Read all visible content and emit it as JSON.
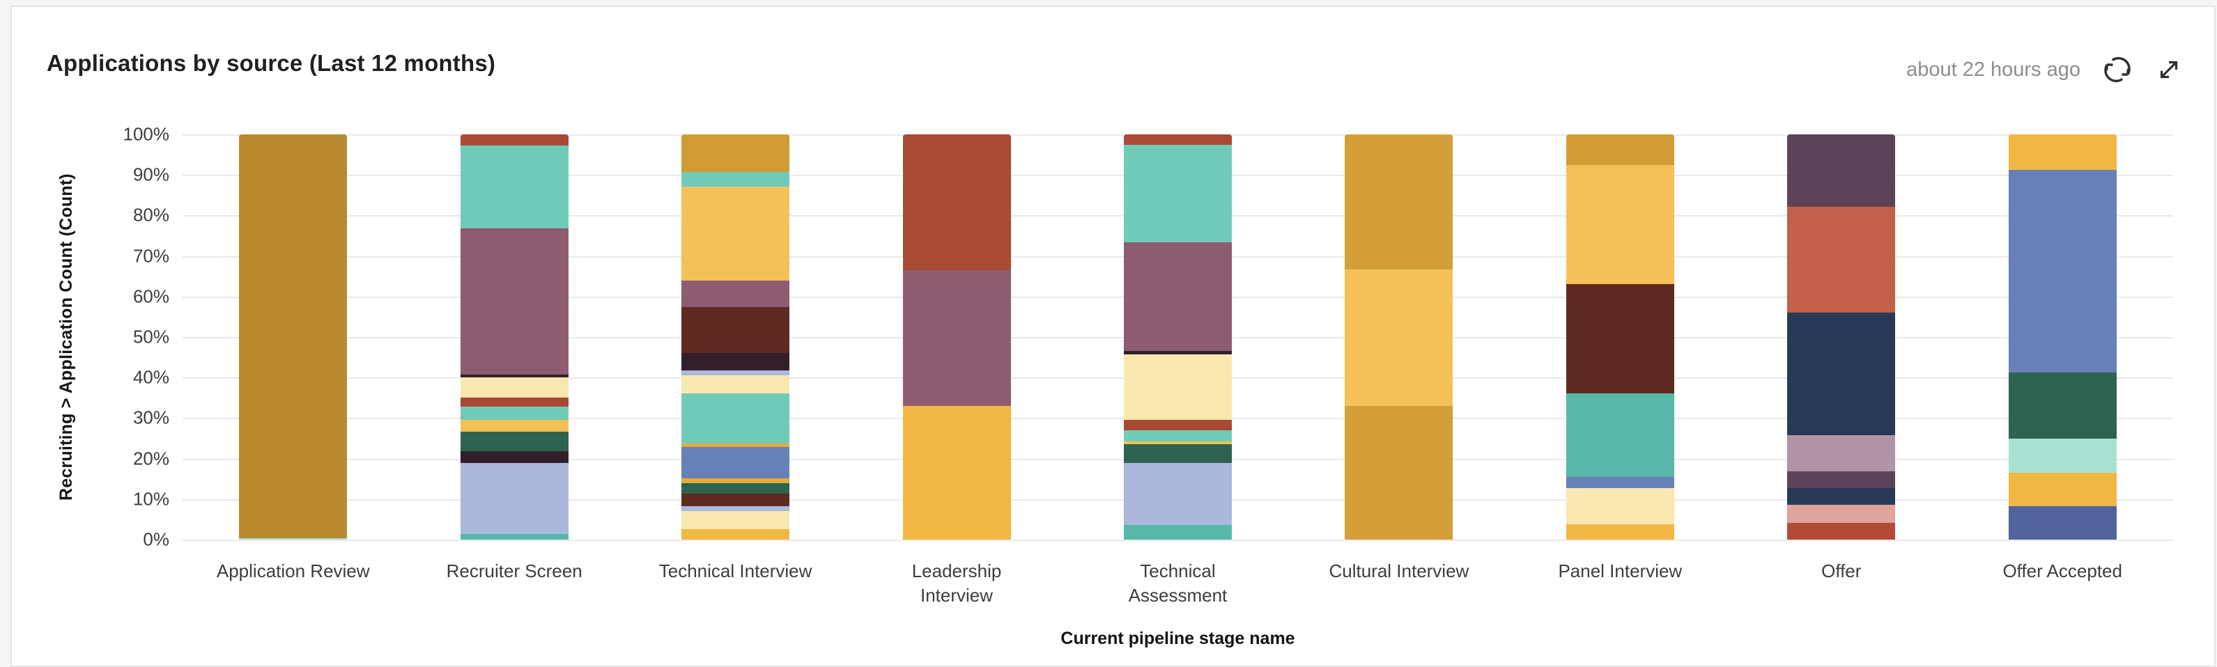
{
  "header": {
    "title": "Applications by source (Last 12 months)",
    "last_updated": "about 22 hours ago"
  },
  "icons": {
    "refresh": "circular-sync-arrows",
    "expand": "diagonal-expand-arrows"
  },
  "chart_data": {
    "type": "bar",
    "variant": "stacked-percentage",
    "title": "Applications by source (Last 12 months)",
    "xlabel": "Current pipeline stage name",
    "ylabel": "Recruiting > Application Count (Count)",
    "ylim": [
      0,
      100
    ],
    "grid": true,
    "legend_position": "none",
    "yticks": [
      "100%",
      "90%",
      "80%",
      "70%",
      "60%",
      "50%",
      "40%",
      "30%",
      "20%",
      "10%",
      "0%"
    ],
    "categories": [
      "Application Review",
      "Recruiter Screen",
      "Technical Interview",
      "Leadership Interview",
      "Technical Assessment",
      "Cultural Interview",
      "Panel Interview",
      "Offer",
      "Offer Accepted"
    ],
    "bars": [
      {
        "category": "Application Review",
        "label": "Application Review",
        "segments": [
          {
            "color": "#b9892e",
            "value": 99.6
          },
          {
            "color": "#a9e2d2",
            "value": 0.4
          }
        ]
      },
      {
        "category": "Recruiter Screen",
        "label": "Recruiter Screen",
        "segments": [
          {
            "color": "#a94a35",
            "value": 2.7
          },
          {
            "color": "#6fcbb8",
            "value": 20.5
          },
          {
            "color": "#8d5c71",
            "value": 36.0
          },
          {
            "color": "#31202c",
            "value": 0.8
          },
          {
            "color": "#f8e8b0",
            "value": 5.0
          },
          {
            "color": "#a94a35",
            "value": 2.2
          },
          {
            "color": "#6fcbb8",
            "value": 3.3
          },
          {
            "color": "#f2c054",
            "value": 2.8
          },
          {
            "color": "#2e6351",
            "value": 4.8
          },
          {
            "color": "#31202c",
            "value": 3.0
          },
          {
            "color": "#aab8dc",
            "value": 17.5
          },
          {
            "color": "#57b7a8",
            "value": 1.4
          }
        ]
      },
      {
        "category": "Technical Interview",
        "label": "Technical Interview",
        "segments": [
          {
            "color": "#d09b35",
            "value": 9.3
          },
          {
            "color": "#6fcbb8",
            "value": 3.6
          },
          {
            "color": "#f4c159",
            "value": 23.1
          },
          {
            "color": "#8d5c71",
            "value": 6.6
          },
          {
            "color": "#5e2a20",
            "value": 11.4
          },
          {
            "color": "#31202c",
            "value": 4.3
          },
          {
            "color": "#aab8dc",
            "value": 1.2
          },
          {
            "color": "#f8e8b0",
            "value": 4.4
          },
          {
            "color": "#6fcbb8",
            "value": 12.4
          },
          {
            "color": "#e8a93b",
            "value": 0.9
          },
          {
            "color": "#6780b8",
            "value": 7.7
          },
          {
            "color": "#e8a93b",
            "value": 1.1
          },
          {
            "color": "#2e6351",
            "value": 2.6
          },
          {
            "color": "#5e2a20",
            "value": 3.2
          },
          {
            "color": "#aab8dc",
            "value": 1.2
          },
          {
            "color": "#f8e8b0",
            "value": 4.5
          },
          {
            "color": "#f0b843",
            "value": 2.5
          }
        ]
      },
      {
        "category": "Leadership Interview",
        "label": "Leadership\nInterview",
        "segments": [
          {
            "color": "#a94a35",
            "value": 33.5
          },
          {
            "color": "#8d5c71",
            "value": 33.5
          },
          {
            "color": "#f0b843",
            "value": 33.0
          }
        ]
      },
      {
        "category": "Technical Assessment",
        "label": "Technical\nAssessment",
        "segments": [
          {
            "color": "#a94a35",
            "value": 2.6
          },
          {
            "color": "#6fcbb8",
            "value": 24.0
          },
          {
            "color": "#8d5c71",
            "value": 26.8
          },
          {
            "color": "#31202c",
            "value": 0.9
          },
          {
            "color": "#f8e8b0",
            "value": 16.2
          },
          {
            "color": "#a94a35",
            "value": 2.5
          },
          {
            "color": "#6fcbb8",
            "value": 2.7
          },
          {
            "color": "#f2c054",
            "value": 0.8
          },
          {
            "color": "#2e6351",
            "value": 4.6
          },
          {
            "color": "#aab8dc",
            "value": 15.3
          },
          {
            "color": "#57b7a8",
            "value": 3.6
          }
        ]
      },
      {
        "category": "Cultural Interview",
        "label": "Cultural Interview",
        "segments": [
          {
            "color": "#d49e39",
            "value": 33.4
          },
          {
            "color": "#f4c159",
            "value": 33.6
          },
          {
            "color": "#d49e39",
            "value": 33.0
          }
        ]
      },
      {
        "category": "Panel Interview",
        "label": "Panel Interview",
        "segments": [
          {
            "color": "#d09b35",
            "value": 7.5
          },
          {
            "color": "#f4c159",
            "value": 29.5
          },
          {
            "color": "#5e2a20",
            "value": 27.0
          },
          {
            "color": "#57b7a8",
            "value": 20.5
          },
          {
            "color": "#6780b8",
            "value": 2.8
          },
          {
            "color": "#f8e8b0",
            "value": 8.9
          },
          {
            "color": "#f0b843",
            "value": 3.8
          }
        ]
      },
      {
        "category": "Offer",
        "label": "Offer",
        "segments": [
          {
            "color": "#5d4358",
            "value": 17.9
          },
          {
            "color": "#c2604a",
            "value": 26.1
          },
          {
            "color": "#273a58",
            "value": 30.3
          },
          {
            "color": "#b193a6",
            "value": 8.9
          },
          {
            "color": "#5d4358",
            "value": 4.1
          },
          {
            "color": "#273a58",
            "value": 4.1
          },
          {
            "color": "#dfa49c",
            "value": 4.4
          },
          {
            "color": "#b34936",
            "value": 4.2
          }
        ]
      },
      {
        "category": "Offer Accepted",
        "label": "Offer Accepted",
        "segments": [
          {
            "color": "#f0b843",
            "value": 8.7
          },
          {
            "color": "#6780b8",
            "value": 50.0
          },
          {
            "color": "#2e6351",
            "value": 16.4
          },
          {
            "color": "#a9e2d2",
            "value": 8.4
          },
          {
            "color": "#f0b843",
            "value": 8.2
          },
          {
            "color": "#50639b",
            "value": 8.3
          }
        ]
      }
    ],
    "colors": {
      "gridline": "#e9e9eb",
      "card_background": "#ffffff",
      "page_background": "#f5f5f6"
    }
  }
}
